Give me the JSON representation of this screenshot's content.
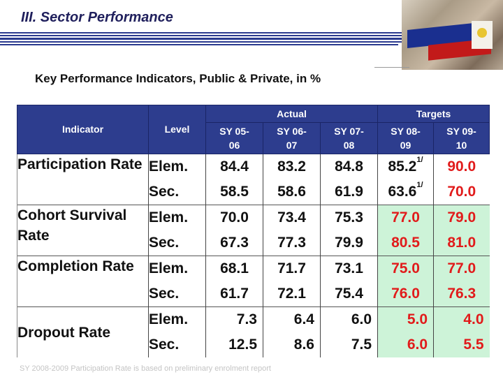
{
  "title": "III. Sector Performance",
  "subtitle": "Key Performance Indicators, Public & Private, in %",
  "table": {
    "headers": {
      "indicator": "Indicator",
      "level": "Level",
      "actual": "Actual",
      "targets": "Targets",
      "years": [
        "SY 05-06",
        "SY 06-07",
        "SY 07-08",
        "SY 08-09",
        "SY 09-10"
      ]
    },
    "rows": [
      {
        "indicator": "Participation Rate",
        "levels": [
          {
            "level": "Elem.",
            "values": [
              "84.4",
              "83.2",
              "84.8",
              "85.2",
              "90.0"
            ],
            "note": "1/"
          },
          {
            "level": "Sec.",
            "values": [
              "58.5",
              "58.6",
              "61.9",
              "63.6",
              "70.0"
            ],
            "note": "1/"
          }
        ]
      },
      {
        "indicator": "Cohort Survival Rate",
        "levels": [
          {
            "level": "Elem.",
            "values": [
              "70.0",
              "73.4",
              "75.3",
              "77.0",
              "79.0"
            ]
          },
          {
            "level": "Sec.",
            "values": [
              "67.3",
              "77.3",
              "79.9",
              "80.5",
              "81.0"
            ]
          }
        ]
      },
      {
        "indicator": "Completion Rate",
        "levels": [
          {
            "level": "Elem.",
            "values": [
              "68.1",
              "71.7",
              "73.1",
              "75.0",
              "77.0"
            ]
          },
          {
            "level": "Sec.",
            "values": [
              "61.7",
              "72.1",
              "75.4",
              "76.0",
              "76.3"
            ]
          }
        ]
      },
      {
        "indicator": "Dropout Rate",
        "levels": [
          {
            "level": "Elem.",
            "values": [
              "7.3",
              "6.4",
              "6.0",
              "5.0",
              "4.0"
            ]
          },
          {
            "level": "Sec.",
            "values": [
              "12.5",
              "8.6",
              "7.5",
              "6.0",
              "5.5"
            ]
          }
        ]
      }
    ]
  },
  "footnote": "SY 2008-2009 Participation Rate is based on preliminary enrolment report",
  "colors": {
    "header_bg": "#2d3d8e",
    "target_bg": "#cdf3d8",
    "target_text": "#e11b1b"
  }
}
